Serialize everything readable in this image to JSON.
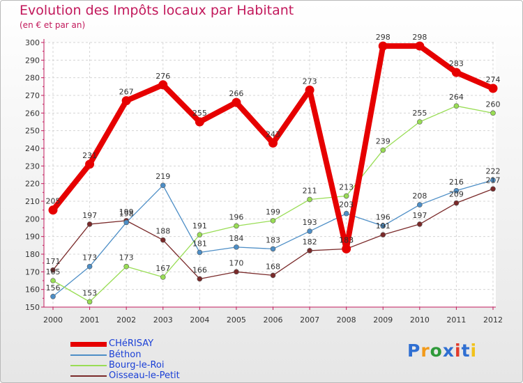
{
  "title": "Evolution des Impôts locaux par Habitant",
  "subtitle": "(en € et par an)",
  "logo": {
    "text": "Proxiti",
    "colors": [
      "#2f6fd2",
      "#f29a1a",
      "#2f9a3a",
      "#2f6fd2",
      "#e23a2a",
      "#2f6fd2",
      "#f2c21a"
    ]
  },
  "chart_data": {
    "type": "line",
    "title": "Evolution des Impôts locaux par Habitant",
    "subtitle": "(en € et par an)",
    "xlabel": "",
    "ylabel": "",
    "x": [
      "2000",
      "2001",
      "2002",
      "2003",
      "2004",
      "2005",
      "2006",
      "2007",
      "2008",
      "2009",
      "2010",
      "2011",
      "2012"
    ],
    "ylim": [
      150,
      300
    ],
    "yticks": [
      150,
      160,
      170,
      180,
      190,
      200,
      210,
      220,
      230,
      240,
      250,
      260,
      270,
      280,
      290,
      300
    ],
    "grid": true,
    "legend_position": "bottom-left",
    "series": [
      {
        "name": "CHéRISAY",
        "color": "#e60000",
        "values": [
          205,
          231,
          267,
          276,
          255,
          266,
          243,
          273,
          183,
          298,
          298,
          283,
          274
        ],
        "labels": [
          "205",
          "231",
          "267",
          "276",
          "255",
          "266",
          "243",
          "273",
          "183",
          "298",
          "298",
          "283",
          "274"
        ]
      },
      {
        "name": "Béthon",
        "color": "#4d8ec6",
        "values": [
          156,
          173,
          198,
          219,
          181,
          184,
          183,
          193,
          203,
          196,
          208,
          216,
          222
        ],
        "labels": [
          "156",
          "173",
          "198",
          "219",
          "181",
          "184",
          "183",
          "193",
          "203",
          "196",
          "208",
          "216",
          "222"
        ]
      },
      {
        "name": "Bourg-le-Roi",
        "color": "#99dd55",
        "values": [
          165,
          153,
          173,
          167,
          191,
          196,
          199,
          211,
          213,
          239,
          255,
          264,
          260
        ],
        "labels": [
          "165",
          "153",
          "173",
          "167",
          "191",
          "196",
          "199",
          "211",
          "213",
          "239",
          "255",
          "264",
          "260"
        ]
      },
      {
        "name": "Oisseau-le-Petit",
        "color": "#7a2a2a",
        "values": [
          171,
          197,
          199,
          188,
          166,
          170,
          168,
          182,
          183,
          191,
          197,
          209,
          217
        ],
        "labels": [
          "171",
          "197",
          "199",
          "188",
          "166",
          "170",
          "168",
          "182",
          "183",
          "191",
          "197",
          "209",
          "217"
        ]
      }
    ]
  }
}
